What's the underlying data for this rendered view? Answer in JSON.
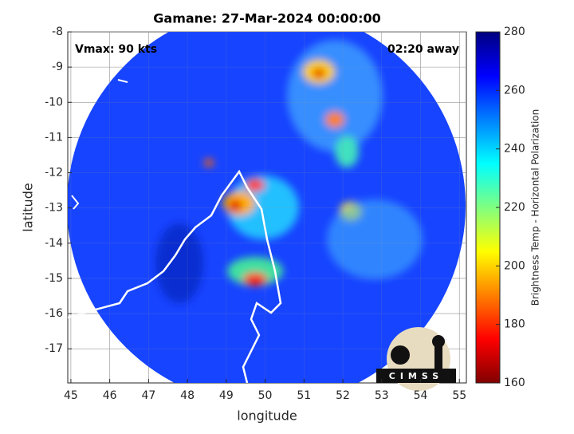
{
  "chart_data": {
    "type": "image",
    "title": "Gamane: 27-Mar-2024 00:00:00",
    "annotations": [
      "Vmax: 90 kts",
      "02:20 away"
    ],
    "xlabel": "longitude",
    "ylabel": "latitude",
    "xlim": [
      44.92,
      55.18
    ],
    "xticks": [
      45,
      46,
      47,
      48,
      49,
      50,
      51,
      52,
      53,
      54,
      55
    ],
    "ylim": [
      -17.97,
      -8
    ],
    "yticks": [
      -8,
      -9,
      -10,
      -11,
      -12,
      -13,
      -14,
      -15,
      -16,
      -17
    ],
    "grid": true,
    "colorbar": {
      "label": "Brightness Temp - Horizontal Polarization",
      "lim": [
        160,
        280
      ],
      "ticks": [
        160,
        180,
        200,
        220,
        240,
        260,
        280
      ],
      "colormap": "jet"
    },
    "logo_text": "CIMSS"
  }
}
